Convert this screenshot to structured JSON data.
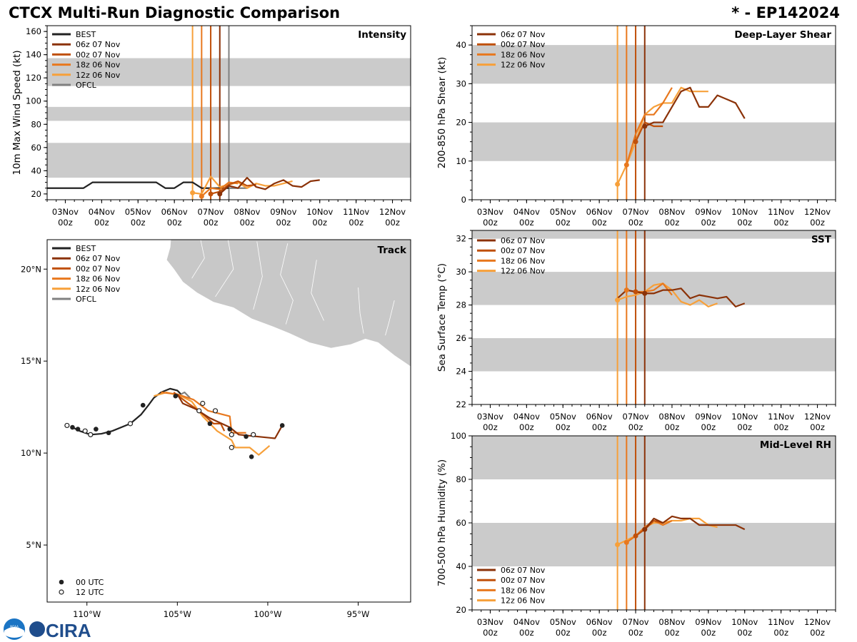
{
  "header": {
    "title": "CTCX Multi-Run Diagnostic Comparison",
    "storm": "* - EP142024"
  },
  "logos": {
    "noaa": "NOAA",
    "cira": "CIRA"
  },
  "colors": {
    "best": "#222222",
    "r06z07": "#8b3208",
    "r00z07": "#c0500a",
    "r18z06": "#e8781e",
    "r12z06": "#f7a03a",
    "ofcl": "#808080",
    "band": "#cbcbcb",
    "land": "#c8c8c8"
  },
  "time_ticks": [
    "03Nov\n00z",
    "04Nov\n00z",
    "05Nov\n00z",
    "06Nov\n00z",
    "07Nov\n00z",
    "08Nov\n00z",
    "09Nov\n00z",
    "10Nov\n00z",
    "11Nov\n00z",
    "12Nov\n00z"
  ],
  "chart_data": [
    {
      "id": "intensity",
      "type": "line",
      "title": "Intensity",
      "ylabel": "10m Max Wind Speed (kt)",
      "xlim": [
        2.5,
        12.5
      ],
      "ylim": [
        15,
        165
      ],
      "yticks": [
        20,
        40,
        60,
        80,
        100,
        120,
        140,
        160
      ],
      "bands": [
        [
          34,
          64
        ],
        [
          83,
          95
        ],
        [
          113,
          137
        ]
      ],
      "init_lines": [
        {
          "x": 6.5,
          "run": "r12z06"
        },
        {
          "x": 6.75,
          "run": "r18z06"
        },
        {
          "x": 7.0,
          "run": "r00z07"
        },
        {
          "x": 7.25,
          "run": "r06z07"
        },
        {
          "x": 7.5,
          "run": "ofcl"
        }
      ],
      "legend": [
        {
          "label": "BEST",
          "run": "best"
        },
        {
          "label": "06z 07 Nov",
          "run": "r06z07"
        },
        {
          "label": "00z 07 Nov",
          "run": "r00z07"
        },
        {
          "label": "18z 06 Nov",
          "run": "r18z06"
        },
        {
          "label": "12z 06 Nov",
          "run": "r12z06"
        },
        {
          "label": "OFCL",
          "run": "ofcl"
        }
      ],
      "series": [
        {
          "run": "best",
          "x": [
            2.5,
            3.5,
            3.75,
            4,
            5,
            5.5,
            5.75,
            6,
            6.25,
            6.5,
            6.75,
            7,
            7.5
          ],
          "y": [
            25,
            25,
            30,
            30,
            30,
            30,
            25,
            25,
            30,
            30,
            25,
            25,
            25
          ]
        },
        {
          "run": "ofcl",
          "x": [
            7.5,
            7.75,
            8.0
          ],
          "y": [
            25,
            25,
            25
          ]
        },
        {
          "run": "r12z06",
          "x": [
            6.5,
            6.75,
            7.0,
            7.25,
            7.5,
            7.75,
            8.0,
            8.25,
            8.5,
            8.75,
            9.0,
            9.25
          ],
          "y": [
            21,
            20,
            35,
            26,
            28,
            30,
            25,
            29,
            27,
            27,
            29,
            31
          ]
        },
        {
          "run": "r18z06",
          "x": [
            6.75,
            7.0,
            7.25,
            7.5,
            7.75
          ],
          "y": [
            18,
            25,
            24,
            30,
            29
          ]
        },
        {
          "run": "r00z07",
          "x": [
            7.0,
            7.25,
            7.5,
            7.75,
            8.0,
            8.25
          ],
          "y": [
            20,
            22,
            28,
            31,
            27,
            28
          ]
        },
        {
          "run": "r06z07",
          "x": [
            7.25,
            7.5,
            7.75,
            8.0,
            8.25,
            8.5,
            8.75,
            9.0,
            9.25,
            9.5,
            9.75,
            10.0
          ],
          "y": [
            20,
            27,
            25,
            34,
            26,
            24,
            29,
            32,
            27,
            26,
            31,
            32
          ]
        }
      ],
      "markers": [
        {
          "x": 6.5,
          "y": 21,
          "run": "r12z06"
        },
        {
          "x": 6.75,
          "y": 18,
          "run": "r18z06"
        },
        {
          "x": 7.0,
          "y": 20,
          "run": "r00z07"
        },
        {
          "x": 7.25,
          "y": 20,
          "run": "r06z07"
        }
      ]
    },
    {
      "id": "shear",
      "type": "line",
      "title": "Deep-Layer Shear",
      "ylabel": "200-850 hPa Shear (kt)",
      "xlim": [
        2.5,
        12.5
      ],
      "ylim": [
        0,
        45
      ],
      "yticks": [
        0,
        10,
        20,
        30,
        40
      ],
      "bands": [
        [
          10,
          20
        ],
        [
          30,
          40
        ]
      ],
      "init_lines": [
        {
          "x": 6.5,
          "run": "r12z06"
        },
        {
          "x": 6.75,
          "run": "r18z06"
        },
        {
          "x": 7.0,
          "run": "r00z07"
        },
        {
          "x": 7.25,
          "run": "r06z07"
        }
      ],
      "legend": [
        {
          "label": "06z 07 Nov",
          "run": "r06z07"
        },
        {
          "label": "00z 07 Nov",
          "run": "r00z07"
        },
        {
          "label": "18z 06 Nov",
          "run": "r18z06"
        },
        {
          "label": "12z 06 Nov",
          "run": "r12z06"
        }
      ],
      "series": [
        {
          "run": "r12z06",
          "x": [
            6.5,
            6.75,
            7.0,
            7.25,
            7.5,
            7.75,
            8.0,
            8.25,
            8.5,
            8.75,
            9.0
          ],
          "y": [
            4,
            9,
            15,
            22,
            24,
            25,
            25,
            29,
            28,
            28,
            28
          ]
        },
        {
          "run": "r18z06",
          "x": [
            6.75,
            7.0,
            7.25,
            7.5,
            7.75,
            8.0
          ],
          "y": [
            9,
            17,
            22,
            22,
            25,
            29
          ]
        },
        {
          "run": "r00z07",
          "x": [
            7.0,
            7.25,
            7.5,
            7.75
          ],
          "y": [
            15,
            20,
            19,
            19
          ]
        },
        {
          "run": "r06z07",
          "x": [
            7.25,
            7.5,
            7.75,
            8.0,
            8.25,
            8.5,
            8.75,
            9.0,
            9.25,
            9.5,
            9.75,
            10.0
          ],
          "y": [
            19,
            20,
            20,
            24,
            28,
            29,
            24,
            24,
            27,
            26,
            25,
            21
          ]
        }
      ],
      "markers": [
        {
          "x": 6.5,
          "y": 4,
          "run": "r12z06"
        },
        {
          "x": 6.75,
          "y": 9,
          "run": "r18z06"
        },
        {
          "x": 7.0,
          "y": 15,
          "run": "r00z07"
        },
        {
          "x": 7.25,
          "y": 19,
          "run": "r06z07"
        }
      ]
    },
    {
      "id": "sst",
      "type": "line",
      "title": "SST",
      "ylabel": "Sea Surface Temp (°C)",
      "xlim": [
        2.5,
        12.5
      ],
      "ylim": [
        22,
        32.5
      ],
      "yticks": [
        22,
        24,
        26,
        28,
        30,
        32
      ],
      "bands": [
        [
          24,
          26
        ],
        [
          28,
          30
        ],
        [
          32,
          34
        ]
      ],
      "init_lines": [
        {
          "x": 6.5,
          "run": "r12z06"
        },
        {
          "x": 6.75,
          "run": "r18z06"
        },
        {
          "x": 7.0,
          "run": "r00z07"
        },
        {
          "x": 7.25,
          "run": "r06z07"
        }
      ],
      "legend": [
        {
          "label": "06z 07 Nov",
          "run": "r06z07"
        },
        {
          "label": "00z 07 Nov",
          "run": "r00z07"
        },
        {
          "label": "18z 06 Nov",
          "run": "r18z06"
        },
        {
          "label": "12z 06 Nov",
          "run": "r12z06"
        }
      ],
      "series": [
        {
          "run": "r12z06",
          "x": [
            6.5,
            6.75,
            7.0,
            7.25,
            7.5,
            7.75,
            8.0,
            8.25,
            8.5,
            8.75,
            9.0,
            9.25
          ],
          "y": [
            28.3,
            28.5,
            28.6,
            28.8,
            29.2,
            29.3,
            28.9,
            28.2,
            28.0,
            28.3,
            27.9,
            28.1
          ]
        },
        {
          "run": "r18z06",
          "x": [
            6.75,
            7.0,
            7.25,
            7.5,
            7.75,
            8.0
          ],
          "y": [
            28.9,
            28.8,
            28.8,
            28.9,
            29.3,
            28.6
          ]
        },
        {
          "run": "r00z07",
          "x": [
            7.0,
            7.25,
            7.5
          ],
          "y": [
            28.8,
            28.7,
            28.7
          ]
        },
        {
          "run": "r06z07",
          "x": [
            6.5,
            6.75,
            7.0,
            7.25,
            7.5,
            7.75,
            8.0,
            8.25,
            8.5,
            8.75,
            9.0,
            9.25,
            9.5,
            9.75,
            10.0
          ],
          "y": [
            28.4,
            28.9,
            28.8,
            28.7,
            28.7,
            28.9,
            28.9,
            29.0,
            28.4,
            28.6,
            28.5,
            28.4,
            28.5,
            27.9,
            28.1
          ]
        }
      ],
      "markers": [
        {
          "x": 6.5,
          "y": 28.3,
          "run": "r12z06"
        },
        {
          "x": 6.75,
          "y": 28.9,
          "run": "r18z06"
        },
        {
          "x": 7.0,
          "y": 28.8,
          "run": "r00z07"
        },
        {
          "x": 7.25,
          "y": 28.7,
          "run": "r06z07"
        }
      ]
    },
    {
      "id": "rh",
      "type": "line",
      "title": "Mid-Level RH",
      "ylabel": "700-500 hPa Humidity (%)",
      "xlim": [
        2.5,
        12.5
      ],
      "ylim": [
        20,
        100
      ],
      "yticks": [
        20,
        40,
        60,
        80,
        100
      ],
      "bands": [
        [
          40,
          60
        ],
        [
          80,
          100
        ]
      ],
      "init_lines": [
        {
          "x": 6.5,
          "run": "r12z06"
        },
        {
          "x": 6.75,
          "run": "r18z06"
        },
        {
          "x": 7.0,
          "run": "r00z07"
        },
        {
          "x": 7.25,
          "run": "r06z07"
        }
      ],
      "legend": [
        {
          "label": "06z 07 Nov",
          "run": "r06z07"
        },
        {
          "label": "00z 07 Nov",
          "run": "r00z07"
        },
        {
          "label": "18z 06 Nov",
          "run": "r18z06"
        },
        {
          "label": "12z 06 Nov",
          "run": "r12z06"
        }
      ],
      "series": [
        {
          "run": "r12z06",
          "x": [
            6.5,
            6.75,
            7.0,
            7.25,
            7.5,
            7.75,
            8.0,
            8.25,
            8.5,
            8.75,
            9.0,
            9.25
          ],
          "y": [
            50,
            52,
            54,
            58,
            60,
            60,
            61,
            61,
            62,
            62,
            59,
            58
          ]
        },
        {
          "run": "r18z06",
          "x": [
            6.75,
            7.0,
            7.25,
            7.5,
            7.75,
            8.0
          ],
          "y": [
            51,
            54,
            58,
            61,
            59,
            61
          ]
        },
        {
          "run": "r00z07",
          "x": [
            7.0,
            7.25,
            7.5,
            7.75
          ],
          "y": [
            54,
            57,
            61,
            60
          ]
        },
        {
          "run": "r06z07",
          "x": [
            7.25,
            7.5,
            7.75,
            8.0,
            8.25,
            8.5,
            8.75,
            9.0,
            9.25,
            9.5,
            9.75,
            10.0
          ],
          "y": [
            57,
            62,
            60,
            63,
            62,
            62,
            59,
            59,
            59,
            59,
            59,
            57
          ]
        }
      ],
      "markers": [
        {
          "x": 6.5,
          "y": 50,
          "run": "r12z06"
        },
        {
          "x": 6.75,
          "y": 51,
          "run": "r18z06"
        },
        {
          "x": 7.0,
          "y": 54,
          "run": "r00z07"
        },
        {
          "x": 7.25,
          "y": 57,
          "run": "r06z07"
        }
      ]
    },
    {
      "id": "track",
      "type": "line",
      "title": "Track",
      "xlabel_ticks": [
        "110°W",
        "105°W",
        "100°W",
        "95°W"
      ],
      "ylabel_ticks": [
        "5°N",
        "10°N",
        "15°N",
        "20°N"
      ],
      "xlim": [
        -112.2,
        -92.1
      ],
      "ylim": [
        1.9,
        21.6
      ],
      "legend": [
        {
          "label": "BEST",
          "run": "best"
        },
        {
          "label": "06z 07 Nov",
          "run": "r06z07"
        },
        {
          "label": "00z 07 Nov",
          "run": "r00z07"
        },
        {
          "label": "18z 06 Nov",
          "run": "r18z06"
        },
        {
          "label": "12z 06 Nov",
          "run": "r12z06"
        },
        {
          "label": "OFCL",
          "run": "ofcl"
        }
      ],
      "marker_legend": [
        "00 UTC",
        "12 UTC"
      ],
      "series": [
        {
          "run": "best",
          "lon": [
            -110.8,
            -110.4,
            -109.8,
            -109.2,
            -108.6,
            -107.6,
            -107.0,
            -106.6,
            -106.3,
            -105.9,
            -105.4,
            -105.0,
            -104.8
          ],
          "lat": [
            11.4,
            11.2,
            11.0,
            11.05,
            11.2,
            11.6,
            12.1,
            12.6,
            13.0,
            13.3,
            13.5,
            13.4,
            13.2
          ]
        },
        {
          "run": "ofcl",
          "lon": [
            -104.8,
            -104.6,
            -104.3
          ],
          "lat": [
            13.2,
            13.3,
            13.0
          ]
        },
        {
          "run": "r12z06",
          "lon": [
            -106.3,
            -105.6,
            -104.8,
            -104.2,
            -103.6,
            -102.8,
            -102.0,
            -101.8,
            -101.0,
            -100.5,
            -99.9
          ],
          "lat": [
            13.1,
            13.3,
            13.1,
            12.8,
            12.0,
            11.2,
            10.7,
            10.3,
            10.3,
            9.9,
            10.4
          ]
        },
        {
          "run": "r18z06",
          "lon": [
            -105.9,
            -105.0,
            -104.1,
            -103.3,
            -102.1,
            -102.0,
            -101.2
          ],
          "lat": [
            13.3,
            13.2,
            12.9,
            12.3,
            12.0,
            11.1,
            11.1
          ]
        },
        {
          "run": "r00z07",
          "lon": [
            -105.2,
            -104.4,
            -103.8,
            -103.0,
            -102.6,
            -102.4
          ],
          "lat": [
            13.3,
            12.7,
            12.3,
            11.6,
            11.6,
            11.2
          ]
        },
        {
          "run": "r06z07",
          "lon": [
            -105.0,
            -104.7,
            -104.0,
            -103.2,
            -102.1,
            -101.6,
            -100.6,
            -99.6,
            -99.2
          ],
          "lat": [
            13.2,
            12.7,
            12.4,
            11.9,
            11.4,
            11.0,
            10.9,
            10.8,
            11.5
          ]
        }
      ],
      "best_dots_00": [
        [
          -110.8,
          11.4
        ],
        [
          -110.5,
          11.3
        ],
        [
          -109.5,
          11.3
        ],
        [
          -108.8,
          11.1
        ],
        [
          -106.9,
          12.6
        ],
        [
          -105.1,
          13.1
        ],
        [
          -103.8,
          12.3
        ],
        [
          -103.2,
          11.6
        ],
        [
          -102.1,
          11.3
        ],
        [
          -101.2,
          10.9
        ],
        [
          -100.9,
          9.8
        ],
        [
          -99.2,
          11.5
        ]
      ],
      "best_dots_12": [
        [
          -111.1,
          11.5
        ],
        [
          -110.1,
          11.2
        ],
        [
          -109.8,
          11.0
        ],
        [
          -107.6,
          11.6
        ],
        [
          -103.6,
          12.7
        ],
        [
          -102.9,
          12.3
        ],
        [
          -102.0,
          11.0
        ],
        [
          -102.0,
          10.3
        ],
        [
          -100.8,
          11.0
        ],
        [
          -103.8,
          12.3
        ]
      ]
    }
  ]
}
